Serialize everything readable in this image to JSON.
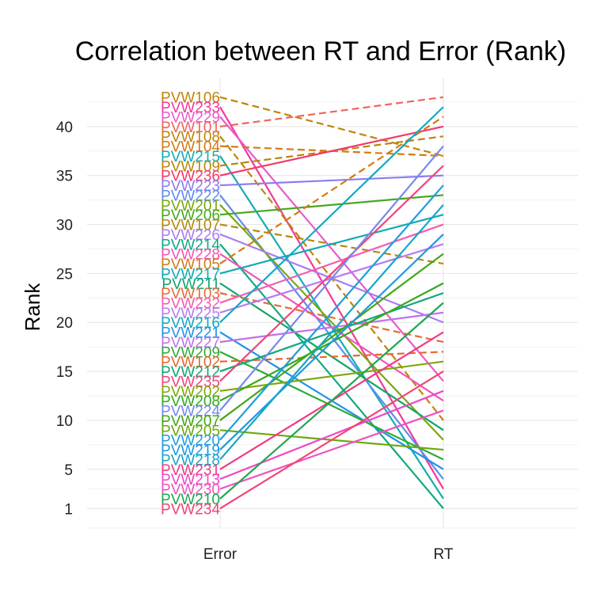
{
  "chart_data": {
    "type": "line",
    "title": "Correlation between RT and Error (Rank)",
    "xlabel": "",
    "ylabel": "Rank",
    "categories": [
      "Error",
      "RT"
    ],
    "ylim": [
      -1,
      45
    ],
    "yticks": [
      1,
      5,
      10,
      15,
      20,
      25,
      30,
      35,
      40
    ],
    "grid": true,
    "legend": "none",
    "line_styles": {
      "solid": "solid",
      "dashed": "dashed"
    },
    "series": [
      {
        "name": "PVW106",
        "values": [
          43,
          37
        ],
        "color": "#C0850A",
        "style": "dashed"
      },
      {
        "name": "PVW233",
        "values": [
          42,
          3
        ],
        "color": "#F4399A",
        "style": "solid"
      },
      {
        "name": "PVW229",
        "values": [
          41,
          14
        ],
        "color": "#E85CCB",
        "style": "solid"
      },
      {
        "name": "PVW101",
        "values": [
          40,
          43
        ],
        "color": "#F0655E",
        "style": "dashed"
      },
      {
        "name": "PVW108",
        "values": [
          39,
          10
        ],
        "color": "#C0850A",
        "style": "dashed"
      },
      {
        "name": "PVW104",
        "values": [
          38,
          37
        ],
        "color": "#D47A14",
        "style": "dashed"
      },
      {
        "name": "PVW215",
        "values": [
          37,
          2
        ],
        "color": "#13AEB2",
        "style": "solid"
      },
      {
        "name": "PVW109",
        "values": [
          36,
          39
        ],
        "color": "#B5890C",
        "style": "dashed"
      },
      {
        "name": "PVW236",
        "values": [
          35,
          40
        ],
        "color": "#F4396A",
        "style": "solid"
      },
      {
        "name": "PVW223",
        "values": [
          34,
          35
        ],
        "color": "#8C7CF0",
        "style": "solid"
      },
      {
        "name": "PVW222",
        "values": [
          33,
          4
        ],
        "color": "#5E8DEF",
        "style": "solid"
      },
      {
        "name": "PVW201",
        "values": [
          32,
          8
        ],
        "color": "#7BA80C",
        "style": "solid"
      },
      {
        "name": "PVW206",
        "values": [
          31,
          33
        ],
        "color": "#45A820",
        "style": "solid"
      },
      {
        "name": "PVW107",
        "values": [
          30,
          26
        ],
        "color": "#B5890C",
        "style": "dashed"
      },
      {
        "name": "PVW226",
        "values": [
          29,
          20
        ],
        "color": "#A97DF2",
        "style": "solid"
      },
      {
        "name": "PVW214",
        "values": [
          28,
          1
        ],
        "color": "#10AA80",
        "style": "solid"
      },
      {
        "name": "PVW228",
        "values": [
          27,
          12
        ],
        "color": "#F155BA",
        "style": "solid"
      },
      {
        "name": "PVW105",
        "values": [
          26,
          41
        ],
        "color": "#D47A14",
        "style": "dashed"
      },
      {
        "name": "PVW217",
        "values": [
          25,
          31
        ],
        "color": "#10A9B8",
        "style": "solid"
      },
      {
        "name": "PVW211",
        "values": [
          24,
          9
        ],
        "color": "#12A56A",
        "style": "solid"
      },
      {
        "name": "PVW103",
        "values": [
          23,
          18
        ],
        "color": "#E76A3C",
        "style": "dashed"
      },
      {
        "name": "PVW232",
        "values": [
          22,
          30
        ],
        "color": "#F45CB0",
        "style": "solid"
      },
      {
        "name": "PVW225",
        "values": [
          21,
          28
        ],
        "color": "#B57CF0",
        "style": "solid"
      },
      {
        "name": "PVW216",
        "values": [
          20,
          42
        ],
        "color": "#13AAC0",
        "style": "solid"
      },
      {
        "name": "PVW221",
        "values": [
          19,
          5
        ],
        "color": "#2193E8",
        "style": "solid"
      },
      {
        "name": "PVW227",
        "values": [
          18,
          21
        ],
        "color": "#C270EC",
        "style": "solid"
      },
      {
        "name": "PVW209",
        "values": [
          17,
          6
        ],
        "color": "#2EAA38",
        "style": "solid"
      },
      {
        "name": "PVW102",
        "values": [
          16,
          17
        ],
        "color": "#E9652E",
        "style": "dashed"
      },
      {
        "name": "PVW212",
        "values": [
          15,
          23
        ],
        "color": "#12A878",
        "style": "solid"
      },
      {
        "name": "PVW235",
        "values": [
          14,
          36
        ],
        "color": "#F2457E",
        "style": "solid"
      },
      {
        "name": "PVW202",
        "values": [
          13,
          16
        ],
        "color": "#7FA80C",
        "style": "solid"
      },
      {
        "name": "PVW208",
        "values": [
          12,
          24
        ],
        "color": "#33A91E",
        "style": "solid"
      },
      {
        "name": "PVW224",
        "values": [
          11,
          38
        ],
        "color": "#7489EE",
        "style": "solid"
      },
      {
        "name": "PVW207",
        "values": [
          10,
          27
        ],
        "color": "#42A814",
        "style": "solid"
      },
      {
        "name": "PVW205",
        "values": [
          9,
          7
        ],
        "color": "#6DA80E",
        "style": "solid"
      },
      {
        "name": "PVW220",
        "values": [
          8,
          34
        ],
        "color": "#1F9DE0",
        "style": "solid"
      },
      {
        "name": "PVW219",
        "values": [
          7,
          29
        ],
        "color": "#1E98E4",
        "style": "solid"
      },
      {
        "name": "PVW218",
        "values": [
          6,
          32
        ],
        "color": "#16A6C8",
        "style": "solid"
      },
      {
        "name": "PVW231",
        "values": [
          5,
          19
        ],
        "color": "#F23A86",
        "style": "solid"
      },
      {
        "name": "PVW213",
        "values": [
          4,
          13
        ],
        "color": "#F046C8",
        "style": "solid"
      },
      {
        "name": "PVW230",
        "values": [
          3,
          11
        ],
        "color": "#EE52C2",
        "style": "solid"
      },
      {
        "name": "PVW210",
        "values": [
          2,
          22
        ],
        "color": "#1EA84E",
        "style": "solid"
      },
      {
        "name": "PVW234",
        "values": [
          1,
          15
        ],
        "color": "#F24476",
        "style": "solid"
      }
    ]
  }
}
